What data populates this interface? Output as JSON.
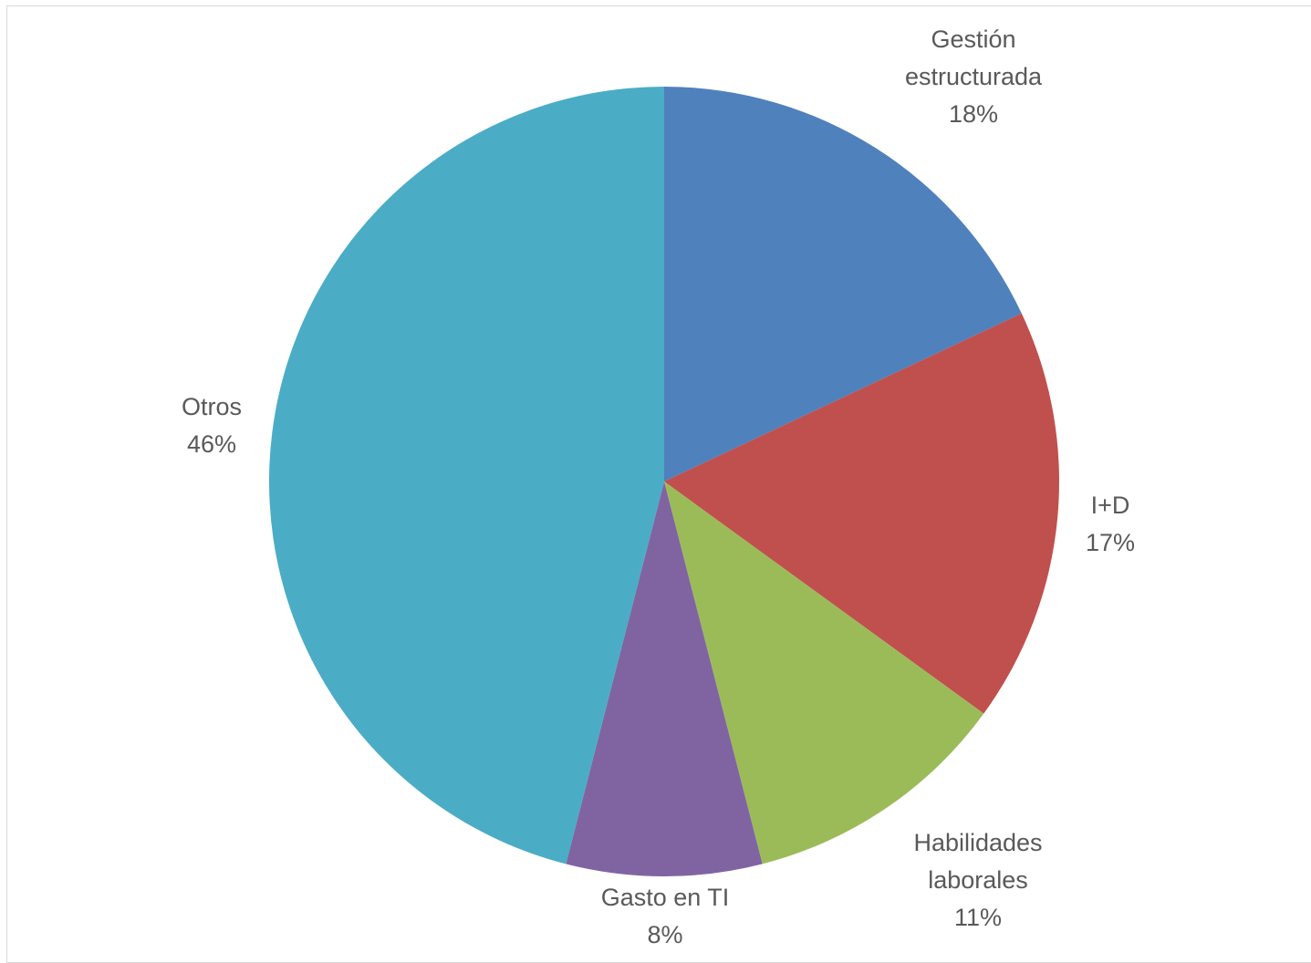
{
  "chart_data": {
    "type": "pie",
    "title": "",
    "categories": [
      "Gestión estructurada",
      "I+D",
      "Habilidades laborales",
      "Gasto en TI",
      "Otros"
    ],
    "values": [
      18,
      17,
      11,
      8,
      46
    ],
    "label_lines": [
      [
        "Gestión",
        "estructurada",
        "18%"
      ],
      [
        "I+D",
        "17%"
      ],
      [
        "Habilidades",
        "laborales",
        "11%"
      ],
      [
        "Gasto en TI",
        "8%"
      ],
      [
        "Otros",
        "46%"
      ]
    ],
    "colors": [
      "#4F81BD",
      "#C0504D",
      "#9BBB59",
      "#8064A2",
      "#4BACC6"
    ],
    "start_angle_deg": 0,
    "direction": "clockwise",
    "legend": "none",
    "data_labels": "outside"
  }
}
